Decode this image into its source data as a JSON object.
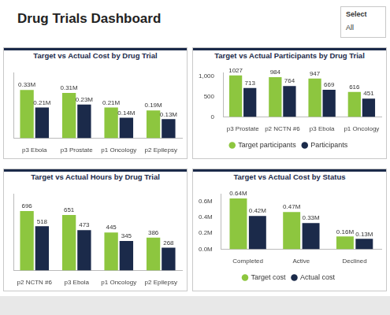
{
  "header": {
    "title": "Drug Trials Dashboard",
    "slicer": {
      "label": "Select",
      "value": "All"
    }
  },
  "chart_data": [
    {
      "type": "bar",
      "title": "Target vs Actual Cost by Drug Trial",
      "categories": [
        "p3 Ebola",
        "p3 Prostate",
        "p1 Oncology",
        "p2 Epilepsy"
      ],
      "series": [
        {
          "color": "#8dc63f",
          "values": [
            0.33,
            0.31,
            0.21,
            0.19
          ],
          "value_labels": [
            "0.33M",
            "0.31M",
            "0.21M",
            "0.19M"
          ]
        },
        {
          "color": "#1b2a4a",
          "values": [
            0.21,
            0.23,
            0.14,
            0.13
          ],
          "value_labels": [
            "0.21M",
            "0.23M",
            "0.14M",
            "0.13M"
          ]
        }
      ],
      "ylim": [
        0,
        0.45
      ],
      "tick_labels": "x",
      "grid": false,
      "data_labels": true
    },
    {
      "type": "bar",
      "title": "Target vs Actual Participants by Drug Trial",
      "categories": [
        "p3 Prostate",
        "p2 NCTN #6",
        "p3 Ebola",
        "p1 Oncology"
      ],
      "series": [
        {
          "name": "Target participants",
          "color": "#8dc63f",
          "values": [
            1027,
            984,
            947,
            616
          ]
        },
        {
          "name": "Participants",
          "color": "#1b2a4a",
          "values": [
            713,
            764,
            669,
            451
          ]
        }
      ],
      "ylim": [
        0,
        1100
      ],
      "yticks": [
        0,
        500,
        {
          "value": 1000,
          "label": "1,000"
        }
      ],
      "grid": false,
      "data_labels": true,
      "legend": "bottom"
    },
    {
      "type": "bar",
      "title": "Target vs Actual Hours by Drug Trial",
      "categories": [
        "p2 NCTN #6",
        "p3 Ebola",
        "p1 Oncology",
        "p2 Epilepsy"
      ],
      "series": [
        {
          "color": "#8dc63f",
          "values": [
            696,
            651,
            445,
            386
          ]
        },
        {
          "color": "#1b2a4a",
          "values": [
            518,
            473,
            345,
            268
          ]
        }
      ],
      "ylim": [
        0,
        900
      ],
      "tick_labels": "x",
      "grid": false,
      "data_labels": true
    },
    {
      "type": "bar",
      "title": "Target vs Actual Cost by Status",
      "categories": [
        "Completed",
        "Active",
        "Declined"
      ],
      "series": [
        {
          "name": "Target cost",
          "color": "#8dc63f",
          "values": [
            0.64,
            0.47,
            0.16
          ],
          "value_labels": [
            "0.64M",
            "0.47M",
            "0.16M"
          ]
        },
        {
          "name": "Actual cost",
          "color": "#1b2a4a",
          "values": [
            0.42,
            0.33,
            0.13
          ],
          "value_labels": [
            "0.42M",
            "0.33M",
            "0.13M"
          ]
        }
      ],
      "ylim": [
        0,
        0.7
      ],
      "yticks": [
        {
          "value": 0,
          "label": "0.0M"
        },
        {
          "value": 0.2,
          "label": "0.2M"
        },
        {
          "value": 0.4,
          "label": "0.4M"
        },
        {
          "value": 0.6,
          "label": "0.6M"
        }
      ],
      "grid": false,
      "data_labels": true,
      "legend": "bottom"
    }
  ]
}
